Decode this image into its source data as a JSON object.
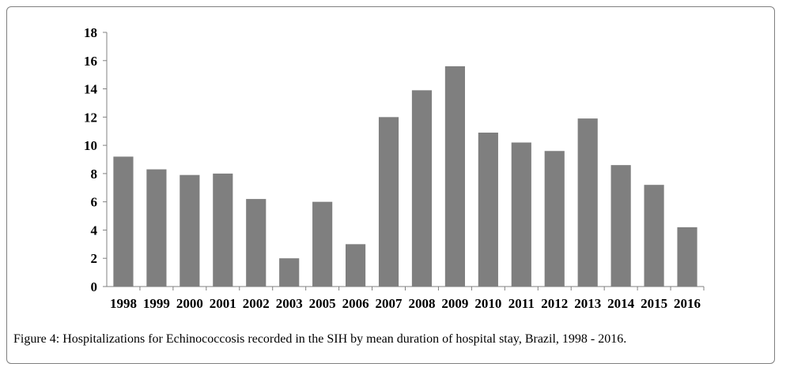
{
  "figure": {
    "caption_label": "Figure 4:",
    "caption_text": " Hospitalizations for Echinococcosis recorded in the SIH by mean duration of hospital stay, Brazil, 1998 - 2016."
  },
  "chart_data": {
    "type": "bar",
    "categories": [
      "1998",
      "1999",
      "2000",
      "2001",
      "2002",
      "2003",
      "2005",
      "2006",
      "2007",
      "2008",
      "2009",
      "2010",
      "2011",
      "2012",
      "2013",
      "2014",
      "2015",
      "2016"
    ],
    "values": [
      9.2,
      8.3,
      7.9,
      8.0,
      6.2,
      2.0,
      6.0,
      3.0,
      12.0,
      13.9,
      15.6,
      10.9,
      10.2,
      9.6,
      11.9,
      8.6,
      7.2,
      4.2
    ],
    "ylim": [
      0,
      18
    ],
    "yticks": [
      0,
      2,
      4,
      6,
      8,
      10,
      12,
      14,
      16,
      18
    ],
    "bar_color": "#7f7f7f",
    "axis_color": "#808080",
    "grid": false,
    "legend": "none"
  }
}
